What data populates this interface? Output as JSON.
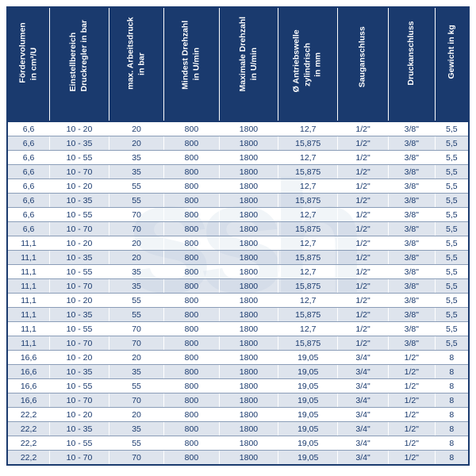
{
  "table": {
    "type": "table",
    "header_bg": "#1a3a6e",
    "header_fg": "#ffffff",
    "row_even_bg": "#c8d2e1",
    "row_odd_bg": "#ffffff",
    "text_color": "#1a3a6e",
    "font_size_pt": 10.5,
    "columns": [
      {
        "key": "c0",
        "label": "Fördervolumen\nin cm³/U",
        "width": "9%"
      },
      {
        "key": "c1",
        "label": "Einstellbereich\nDruckregler in bar",
        "width": "13%"
      },
      {
        "key": "c2",
        "label": "max. Arbeitsdruck\nin bar",
        "width": "12%"
      },
      {
        "key": "c3",
        "label": "Mindest Drehzahl\nin U/min",
        "width": "12%"
      },
      {
        "key": "c4",
        "label": "Maximale Drehzahl\nin U/min",
        "width": "13%"
      },
      {
        "key": "c5",
        "label": "Ø Antriebswelle\nzylindrisch\nin mm",
        "width": "13%"
      },
      {
        "key": "c6",
        "label": "Sauganschluss",
        "width": "11%"
      },
      {
        "key": "c7",
        "label": "Druckanschluss",
        "width": "10%"
      },
      {
        "key": "c8",
        "label": "Gewicht in kg",
        "width": "7%"
      }
    ],
    "rows": [
      [
        "6,6",
        "10 - 20",
        "20",
        "800",
        "1800",
        "12,7",
        "1/2\"",
        "3/8\"",
        "5,5"
      ],
      [
        "6,6",
        "10 - 35",
        "20",
        "800",
        "1800",
        "15,875",
        "1/2\"",
        "3/8\"",
        "5,5"
      ],
      [
        "6,6",
        "10 - 55",
        "35",
        "800",
        "1800",
        "12,7",
        "1/2\"",
        "3/8\"",
        "5,5"
      ],
      [
        "6,6",
        "10 - 70",
        "35",
        "800",
        "1800",
        "15,875",
        "1/2\"",
        "3/8\"",
        "5,5"
      ],
      [
        "6,6",
        "10 - 20",
        "55",
        "800",
        "1800",
        "12,7",
        "1/2\"",
        "3/8\"",
        "5,5"
      ],
      [
        "6,6",
        "10 - 35",
        "55",
        "800",
        "1800",
        "15,875",
        "1/2\"",
        "3/8\"",
        "5,5"
      ],
      [
        "6,6",
        "10 - 55",
        "70",
        "800",
        "1800",
        "12,7",
        "1/2\"",
        "3/8\"",
        "5,5"
      ],
      [
        "6,6",
        "10 - 70",
        "70",
        "800",
        "1800",
        "15,875",
        "1/2\"",
        "3/8\"",
        "5,5"
      ],
      [
        "11,1",
        "10 - 20",
        "20",
        "800",
        "1800",
        "12,7",
        "1/2\"",
        "3/8\"",
        "5,5"
      ],
      [
        "11,1",
        "10 - 35",
        "20",
        "800",
        "1800",
        "15,875",
        "1/2\"",
        "3/8\"",
        "5,5"
      ],
      [
        "11,1",
        "10 - 55",
        "35",
        "800",
        "1800",
        "12,7",
        "1/2\"",
        "3/8\"",
        "5,5"
      ],
      [
        "11,1",
        "10 - 70",
        "35",
        "800",
        "1800",
        "15,875",
        "1/2\"",
        "3/8\"",
        "5,5"
      ],
      [
        "11,1",
        "10 - 20",
        "55",
        "800",
        "1800",
        "12,7",
        "1/2\"",
        "3/8\"",
        "5,5"
      ],
      [
        "11,1",
        "10 - 35",
        "55",
        "800",
        "1800",
        "15,875",
        "1/2\"",
        "3/8\"",
        "5,5"
      ],
      [
        "11,1",
        "10 - 55",
        "70",
        "800",
        "1800",
        "12,7",
        "1/2\"",
        "3/8\"",
        "5,5"
      ],
      [
        "11,1",
        "10 - 70",
        "70",
        "800",
        "1800",
        "15,875",
        "1/2\"",
        "3/8\"",
        "5,5"
      ],
      [
        "16,6",
        "10 - 20",
        "20",
        "800",
        "1800",
        "19,05",
        "3/4\"",
        "1/2\"",
        "8"
      ],
      [
        "16,6",
        "10 - 35",
        "35",
        "800",
        "1800",
        "19,05",
        "3/4\"",
        "1/2\"",
        "8"
      ],
      [
        "16,6",
        "10 - 55",
        "55",
        "800",
        "1800",
        "19,05",
        "3/4\"",
        "1/2\"",
        "8"
      ],
      [
        "16,6",
        "10 - 70",
        "70",
        "800",
        "1800",
        "19,05",
        "3/4\"",
        "1/2\"",
        "8"
      ],
      [
        "22,2",
        "10 - 20",
        "20",
        "800",
        "1800",
        "19,05",
        "3/4\"",
        "1/2\"",
        "8"
      ],
      [
        "22,2",
        "10 - 35",
        "35",
        "800",
        "1800",
        "19,05",
        "3/4\"",
        "1/2\"",
        "8"
      ],
      [
        "22,2",
        "10 - 55",
        "55",
        "800",
        "1800",
        "19,05",
        "3/4\"",
        "1/2\"",
        "8"
      ],
      [
        "22,2",
        "10 - 70",
        "70",
        "800",
        "1800",
        "19,05",
        "3/4\"",
        "1/2\"",
        "8"
      ]
    ]
  }
}
